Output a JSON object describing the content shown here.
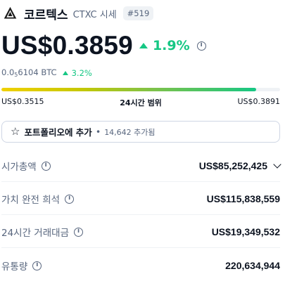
{
  "header": {
    "coin_name": "코르텍스",
    "symbol": "CTXC 시세",
    "rank": "#519",
    "logo_icon": "cortex-logo-icon"
  },
  "price": {
    "value": "US$0.3859",
    "change": "1.9%",
    "change_direction": "up",
    "change_color": "#16c784"
  },
  "btc": {
    "prefix": "0.0",
    "sub": "5",
    "suffix": "6104 BTC",
    "change": "3.2%"
  },
  "range": {
    "low": "US$0.3515",
    "label": "24시간 범위",
    "high": "US$0.3891",
    "position": 0.915
  },
  "portfolio": {
    "label": "포트폴리오에 추가",
    "count": "14,642 추가됨"
  },
  "stats": [
    {
      "label": "시가총액",
      "value": "US$85,252,425"
    },
    {
      "label": "가치 완전 희석",
      "value": "US$115,838,559"
    },
    {
      "label": "24시간 거래대금",
      "value": "US$19,349,532"
    },
    {
      "label": "유통량",
      "value": "220,634,944"
    }
  ]
}
